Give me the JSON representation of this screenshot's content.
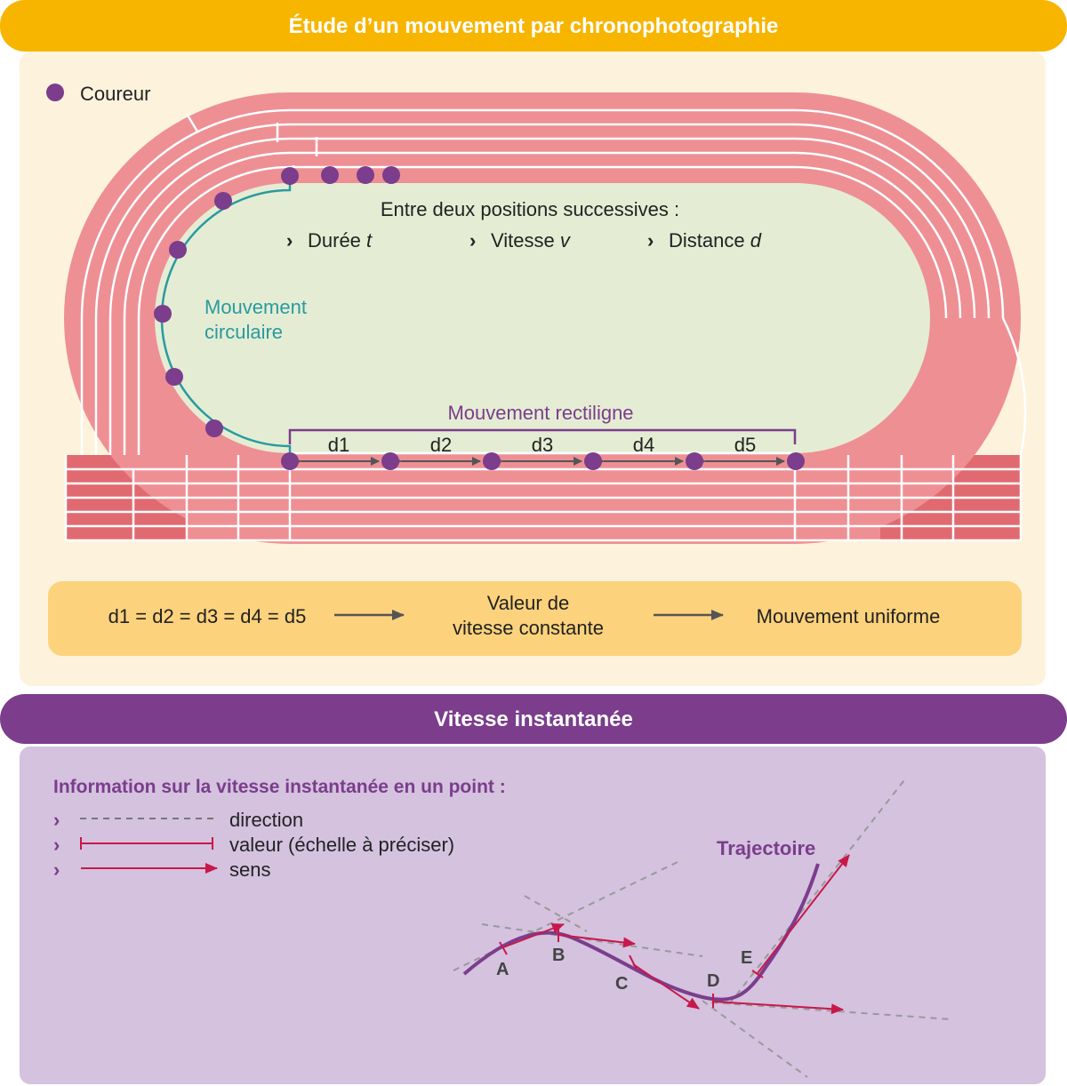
{
  "section1": {
    "title": "Étude d’un mouvement par chronophotographie",
    "legend_label": "Coureur",
    "between_title": "Entre deux positions successives :",
    "items": [
      {
        "label": "Durée ",
        "var": "t"
      },
      {
        "label": "Vitesse ",
        "var": "v"
      },
      {
        "label": "Distance ",
        "var": "d"
      }
    ],
    "circular_label": [
      "Mouvement",
      "circulaire"
    ],
    "rectilinear_label": "Mouvement rectiligne",
    "distances": [
      "d1",
      "d2",
      "d3",
      "d4",
      "d5"
    ],
    "summary": {
      "equation": "d1 = d2 = d3 = d4 = d5",
      "middle": [
        "Valeur de",
        "vitesse constante"
      ],
      "result": "Mouvement uniforme"
    }
  },
  "section2": {
    "title": "Vitesse instantanée",
    "info_title": "Information sur la vitesse instantanée en un point :",
    "legend": [
      "direction",
      "valeur (échelle à préciser)",
      "sens"
    ],
    "trajectory_label": "Trajectoire",
    "points": [
      "A",
      "B",
      "C",
      "D",
      "E"
    ]
  },
  "colors": {
    "orange": "#F7B500",
    "purple": "#7B3D8C",
    "track": "#EE8F94",
    "infield": "#E4EDD4",
    "teal": "#2A9A9F",
    "crimson": "#C8184A"
  }
}
